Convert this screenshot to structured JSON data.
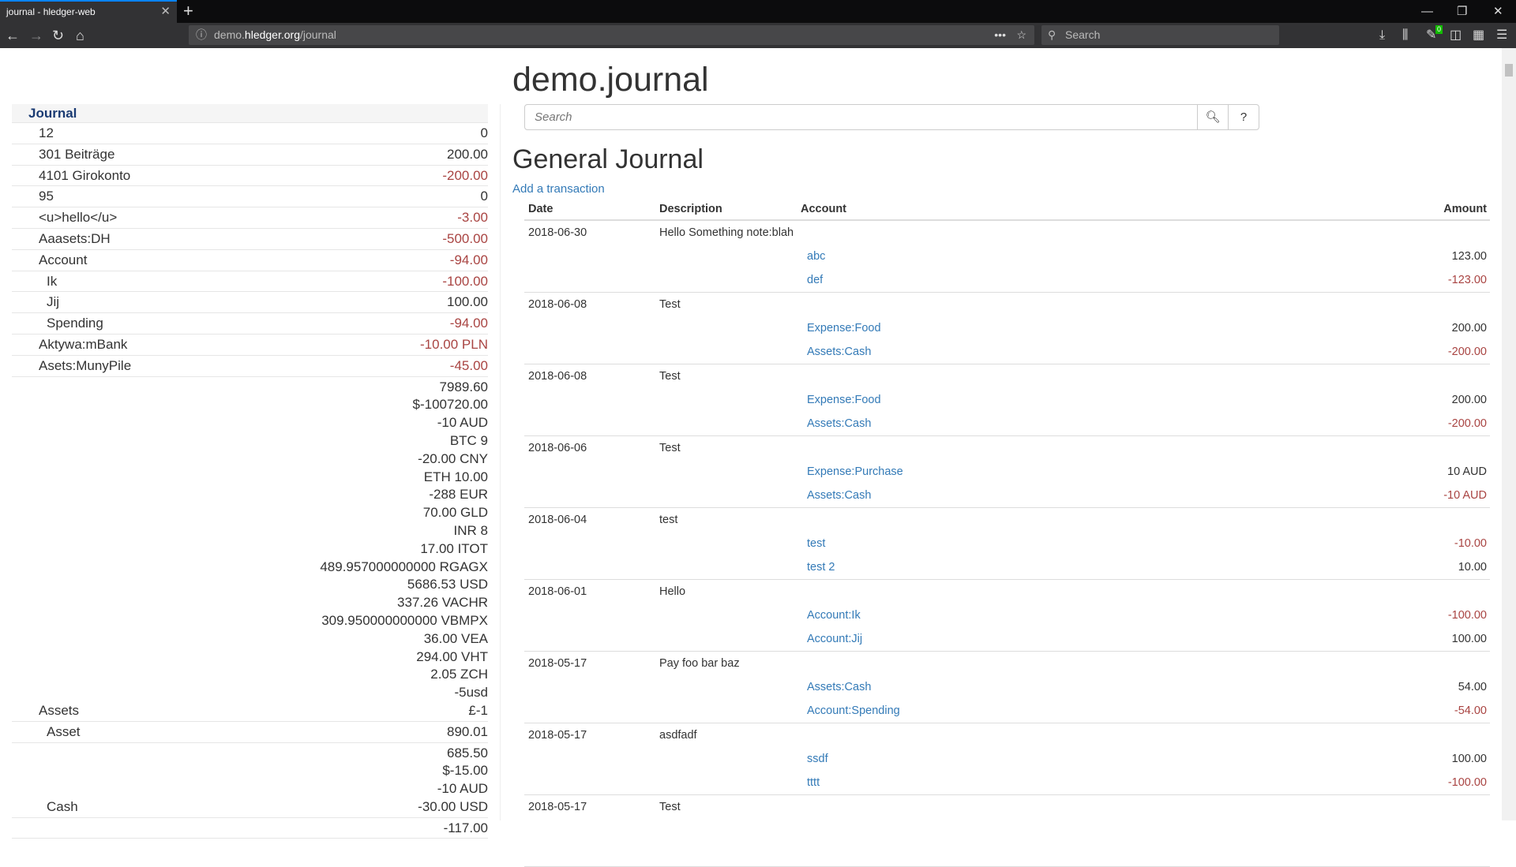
{
  "browser": {
    "tab_title": "journal - hledger-web",
    "url_domain_pre": "demo.",
    "url_domain": "hledger.org",
    "url_path": "/journal",
    "search_placeholder": "Search",
    "addon_badge": "0"
  },
  "page": {
    "title": "demo.journal",
    "search_placeholder": "Search",
    "search_help": "?",
    "heading": "General Journal",
    "add_transaction": "Add a transaction"
  },
  "colors": {
    "negative": "#a94442",
    "link": "#337ab7",
    "sidebar_header": "#1a3b73"
  },
  "sidebar": {
    "header": "Journal",
    "items": [
      {
        "name": "12",
        "indent": 0,
        "amounts": [
          "0"
        ]
      },
      {
        "name": "301 Beiträge",
        "indent": 0,
        "amounts": [
          "200.00"
        ]
      },
      {
        "name": "4101 Girokonto",
        "indent": 0,
        "amounts": [
          "-200.00"
        ],
        "negative": true
      },
      {
        "name": "95",
        "indent": 0,
        "amounts": [
          "0"
        ]
      },
      {
        "name": "<u>hello</u>",
        "indent": 0,
        "amounts": [
          "-3.00"
        ],
        "negative": true
      },
      {
        "name": "Aaasets:DH",
        "indent": 0,
        "amounts": [
          "-500.00"
        ],
        "negative": true
      },
      {
        "name": "Account",
        "indent": 0,
        "amounts": [
          "-94.00"
        ],
        "negative": true
      },
      {
        "name": "Ik",
        "indent": 1,
        "amounts": [
          "-100.00"
        ],
        "negative": true
      },
      {
        "name": "Jij",
        "indent": 1,
        "amounts": [
          "100.00"
        ]
      },
      {
        "name": "Spending",
        "indent": 1,
        "amounts": [
          "-94.00"
        ],
        "negative": true
      },
      {
        "name": "Aktywa:mBank",
        "indent": 0,
        "amounts": [
          "-10.00 PLN"
        ],
        "negative": true
      },
      {
        "name": "Asets:MunyPile",
        "indent": 0,
        "amounts": [
          "-45.00"
        ],
        "negative": true
      },
      {
        "name": "Assets",
        "indent": 0,
        "amounts": [
          "7989.60",
          "$-100720.00",
          "-10 AUD",
          "BTC 9",
          "-20.00 CNY",
          "ETH 10.00",
          "-288 EUR",
          "70.00 GLD",
          "INR 8",
          "17.00 ITOT",
          "489.957000000000 RGAGX",
          "5686.53 USD",
          "337.26 VACHR",
          "309.950000000000 VBMPX",
          "36.00 VEA",
          "294.00 VHT",
          "2.05 ZCH",
          "-5usd",
          "£-1"
        ]
      },
      {
        "name": "Asset",
        "indent": 1,
        "amounts": [
          "890.01"
        ]
      },
      {
        "name": "Cash",
        "indent": 1,
        "amounts": [
          "685.50",
          "$-15.00",
          "-10 AUD",
          "-30.00 USD"
        ]
      },
      {
        "name": "",
        "indent": 1,
        "amounts": [
          "-117.00"
        ]
      }
    ]
  },
  "journal": {
    "columns": {
      "date": "Date",
      "description": "Description",
      "account": "Account",
      "amount": "Amount"
    },
    "transactions": [
      {
        "date": "2018-06-30",
        "description": "Hello Something note:blah",
        "postings": [
          {
            "account": "abc",
            "amount": "123.00"
          },
          {
            "account": "def",
            "amount": "-123.00",
            "negative": true
          }
        ]
      },
      {
        "date": "2018-06-08",
        "description": "Test",
        "postings": [
          {
            "account": "Expense:Food",
            "amount": "200.00"
          },
          {
            "account": "Assets:Cash",
            "amount": "-200.00",
            "negative": true
          }
        ]
      },
      {
        "date": "2018-06-08",
        "description": "Test",
        "postings": [
          {
            "account": "Expense:Food",
            "amount": "200.00"
          },
          {
            "account": "Assets:Cash",
            "amount": "-200.00",
            "negative": true
          }
        ]
      },
      {
        "date": "2018-06-06",
        "description": "Test",
        "postings": [
          {
            "account": "Expense:Purchase",
            "amount": "10 AUD"
          },
          {
            "account": "Assets:Cash",
            "amount": "-10 AUD",
            "negative": true
          }
        ]
      },
      {
        "date": "2018-06-04",
        "description": "test",
        "postings": [
          {
            "account": "test",
            "amount": "-10.00",
            "negative": true
          },
          {
            "account": "test 2",
            "amount": "10.00"
          }
        ]
      },
      {
        "date": "2018-06-01",
        "description": "Hello",
        "postings": [
          {
            "account": "Account:Ik",
            "amount": "-100.00",
            "negative": true
          },
          {
            "account": "Account:Jij",
            "amount": "100.00"
          }
        ]
      },
      {
        "date": "2018-05-17",
        "description": "Pay foo bar baz",
        "postings": [
          {
            "account": "Assets:Cash",
            "amount": "54.00"
          },
          {
            "account": "Account:Spending",
            "amount": "-54.00",
            "negative": true
          }
        ]
      },
      {
        "date": "2018-05-17",
        "description": "asdfadf",
        "postings": [
          {
            "account": "ssdf",
            "amount": "100.00"
          },
          {
            "account": "tttt",
            "amount": "-100.00",
            "negative": true
          }
        ]
      },
      {
        "date": "2018-05-17",
        "description": "Test",
        "postings": []
      }
    ]
  }
}
